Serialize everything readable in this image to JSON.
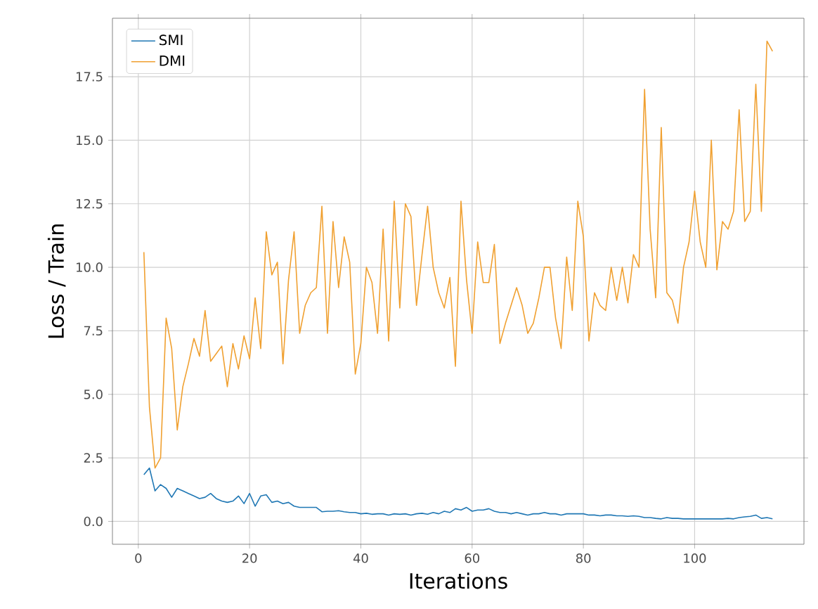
{
  "chart_data": {
    "type": "line",
    "xlabel": "Iterations",
    "ylabel": "Loss / Train",
    "x": [
      1,
      2,
      3,
      4,
      5,
      6,
      7,
      8,
      9,
      10,
      11,
      12,
      13,
      14,
      15,
      16,
      17,
      18,
      19,
      20,
      21,
      22,
      23,
      24,
      25,
      26,
      27,
      28,
      29,
      30,
      31,
      32,
      33,
      34,
      35,
      36,
      37,
      38,
      39,
      40,
      41,
      42,
      43,
      44,
      45,
      46,
      47,
      48,
      49,
      50,
      51,
      52,
      53,
      54,
      55,
      56,
      57,
      58,
      59,
      60,
      61,
      62,
      63,
      64,
      65,
      66,
      67,
      68,
      69,
      70,
      71,
      72,
      73,
      74,
      75,
      76,
      77,
      78,
      79,
      80,
      81,
      82,
      83,
      84,
      85,
      86,
      87,
      88,
      89,
      90,
      91,
      92,
      93,
      94,
      95,
      96,
      97,
      98,
      99,
      100,
      101,
      102,
      103,
      104,
      105,
      106,
      107,
      108,
      109,
      110,
      111,
      112,
      113,
      114
    ],
    "series": [
      {
        "name": "SMI",
        "color": "#1f77b4",
        "values": [
          1.84,
          2.1,
          1.2,
          1.45,
          1.3,
          0.95,
          1.3,
          1.2,
          1.1,
          1.0,
          0.9,
          0.95,
          1.1,
          0.9,
          0.8,
          0.75,
          0.8,
          1.0,
          0.7,
          1.1,
          0.6,
          1.0,
          1.05,
          0.75,
          0.8,
          0.7,
          0.75,
          0.6,
          0.55,
          0.55,
          0.55,
          0.55,
          0.38,
          0.4,
          0.4,
          0.42,
          0.38,
          0.35,
          0.35,
          0.3,
          0.32,
          0.28,
          0.3,
          0.3,
          0.25,
          0.3,
          0.28,
          0.3,
          0.25,
          0.3,
          0.32,
          0.28,
          0.35,
          0.3,
          0.4,
          0.35,
          0.5,
          0.45,
          0.55,
          0.4,
          0.45,
          0.45,
          0.5,
          0.4,
          0.35,
          0.35,
          0.3,
          0.35,
          0.3,
          0.25,
          0.3,
          0.3,
          0.35,
          0.3,
          0.3,
          0.25,
          0.3,
          0.3,
          0.3,
          0.3,
          0.25,
          0.25,
          0.22,
          0.25,
          0.25,
          0.22,
          0.22,
          0.2,
          0.22,
          0.2,
          0.15,
          0.15,
          0.12,
          0.1,
          0.15,
          0.12,
          0.12,
          0.1,
          0.1,
          0.1,
          0.1,
          0.1,
          0.1,
          0.1,
          0.1,
          0.12,
          0.1,
          0.15,
          0.18,
          0.2,
          0.25,
          0.12,
          0.15,
          0.1
        ]
      },
      {
        "name": "DMI",
        "color": "#f0a030",
        "values": [
          10.6,
          4.5,
          2.1,
          2.5,
          8.0,
          6.8,
          3.6,
          5.3,
          6.2,
          7.2,
          6.5,
          8.3,
          6.3,
          6.6,
          6.9,
          5.3,
          7.0,
          6.0,
          7.3,
          6.4,
          8.8,
          6.8,
          11.4,
          9.7,
          10.2,
          6.2,
          9.5,
          11.4,
          7.4,
          8.5,
          9.0,
          9.2,
          12.4,
          7.4,
          11.8,
          9.2,
          11.2,
          10.2,
          5.8,
          7.0,
          10.0,
          9.4,
          7.4,
          11.5,
          7.1,
          12.6,
          8.4,
          12.5,
          12.0,
          8.5,
          10.5,
          12.4,
          10.0,
          9.0,
          8.4,
          9.6,
          6.1,
          12.6,
          9.5,
          7.4,
          11.0,
          9.4,
          9.4,
          10.9,
          7.0,
          7.8,
          8.5,
          9.2,
          8.5,
          7.4,
          7.8,
          8.8,
          10.0,
          10.0,
          8.0,
          6.8,
          10.4,
          8.3,
          12.6,
          11.2,
          7.1,
          9.0,
          8.5,
          8.3,
          10.0,
          8.7,
          10.0,
          8.6,
          10.5,
          10.0,
          17.0,
          11.5,
          8.8,
          15.5,
          9.0,
          8.7,
          7.8,
          10.0,
          11.0,
          13.0,
          11.0,
          10.0,
          15.0,
          9.9,
          11.8,
          11.5,
          12.2,
          16.2,
          11.8,
          12.2,
          17.2,
          12.2,
          18.9,
          18.5
        ]
      }
    ],
    "xlim": [
      -4.65,
      119.65
    ],
    "ylim": [
      -0.9,
      19.8
    ],
    "xticks": [
      0,
      20,
      40,
      60,
      80,
      100
    ],
    "yticks": [
      {
        "value": 0,
        "label": "0.0"
      },
      {
        "value": 2.5,
        "label": "2.5"
      },
      {
        "value": 5,
        "label": "5.0"
      },
      {
        "value": 7.5,
        "label": "7.5"
      },
      {
        "value": 10,
        "label": "10.0"
      },
      {
        "value": 12.5,
        "label": "12.5"
      },
      {
        "value": 15,
        "label": "15.0"
      },
      {
        "value": 17.5,
        "label": "17.5"
      }
    ],
    "grid": true,
    "legend": "top left",
    "line_style": "solid"
  }
}
